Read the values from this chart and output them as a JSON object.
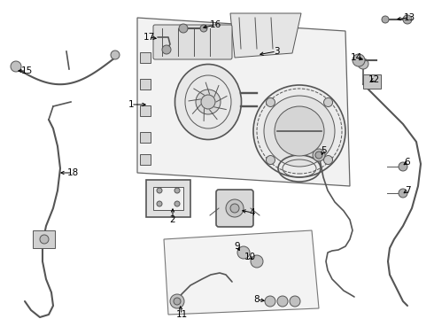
{
  "bg_color": "#ffffff",
  "fig_width": 4.9,
  "fig_height": 3.6,
  "dpi": 100,
  "line_color": "#555555",
  "lw_main": 1.2,
  "lw_thin": 0.7,
  "label_fontsize": 7.5
}
